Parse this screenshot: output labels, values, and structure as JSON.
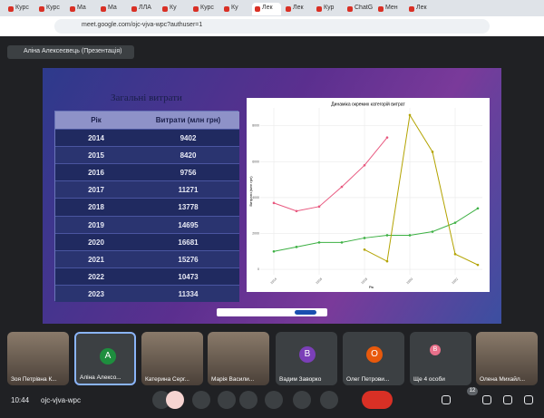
{
  "browser": {
    "tabs": [
      "Курс",
      "Курс",
      "Ма",
      "Ма",
      "ЛЛА",
      "Ку",
      "Курс",
      "Ку",
      "Лек",
      "Лек",
      "Кур",
      "ChatG",
      "Мен",
      "Лек"
    ],
    "url": "meet.google.com/ojc-vjva-wpc?authuser=1"
  },
  "presenter": "Аліна Алексеєвець (Презентація)",
  "slide": {
    "title": "Загальні витрати",
    "table": {
      "header": [
        "Рік",
        "Витрати (млн грн)"
      ],
      "rows": [
        [
          2014,
          9402
        ],
        [
          2015,
          8420
        ],
        [
          2016,
          9756
        ],
        [
          2017,
          11271
        ],
        [
          2018,
          13778
        ],
        [
          2019,
          14695
        ],
        [
          2020,
          16681
        ],
        [
          2021,
          15276
        ],
        [
          2022,
          10473
        ],
        [
          2023,
          11334
        ]
      ]
    }
  },
  "chart_data": {
    "type": "line",
    "title": "Динаміка окремих категорій витрат",
    "x_label": "Рік",
    "y_label": "Витрати (млн грн)",
    "x": [
      2014,
      2015,
      2016,
      2017,
      2018,
      2019,
      2020,
      2021,
      2022,
      2023
    ],
    "xlim": [
      2013.4,
      2023.2
    ],
    "xticks": [
      2014,
      2016,
      2018,
      2020,
      2022
    ],
    "ylim": [
      -300,
      9000
    ],
    "yticks": [
      0,
      2000,
      4000,
      6000,
      8000
    ],
    "grid": true,
    "series": [
      {
        "color": "#e8587f",
        "values": [
          3700,
          3250,
          3500,
          4600,
          5800,
          7350,
          null,
          null,
          null,
          null
        ]
      },
      {
        "color": "#3cb043",
        "values": [
          1000,
          1250,
          1500,
          1500,
          1750,
          1900,
          1900,
          2100,
          2600,
          3400
        ]
      },
      {
        "color": "#b3a300",
        "values": [
          null,
          null,
          null,
          null,
          1100,
          450,
          8600,
          6550,
          850,
          250
        ]
      }
    ]
  },
  "participants": [
    {
      "name": "Зоя Петрівна К..."
    },
    {
      "name": "Аліна Алексо...",
      "avatar": "A"
    },
    {
      "name": "Катерина Серг..."
    },
    {
      "name": "Марія Васили..."
    },
    {
      "name": "Вадим Заворко",
      "avatar": "В"
    },
    {
      "name": "Олег Петрови...",
      "avatar": "О"
    },
    {
      "name": "Ще 4 особи",
      "avatar": "В"
    },
    {
      "name": "Олена Михайл..."
    }
  ],
  "footer": {
    "time": "10:44",
    "meeting_code": "ojc-vjva-wpc",
    "people_count": 12
  }
}
